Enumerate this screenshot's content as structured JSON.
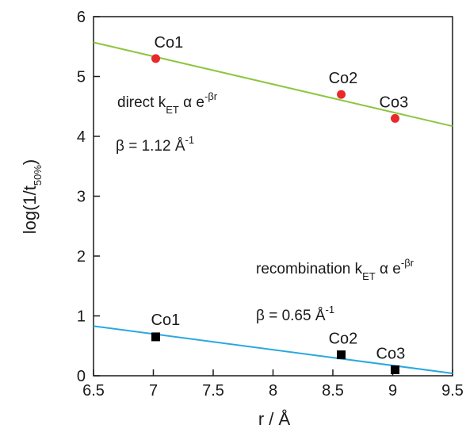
{
  "chart_data": {
    "type": "scatter",
    "xlabel": "r / Å",
    "ylabel": {
      "main": "log(1/t",
      "sub": "50%",
      "close": ")"
    },
    "xlim": [
      6.5,
      9.5
    ],
    "ylim": [
      0,
      6
    ],
    "xticks": [
      "6.5",
      "7",
      "7.5",
      "8",
      "8.5",
      "9",
      "9.5"
    ],
    "yticks": [
      "0",
      "1",
      "2",
      "3",
      "4",
      "5",
      "6"
    ],
    "xtick_values": [
      6.5,
      7,
      7.5,
      8,
      8.5,
      9,
      9.5
    ],
    "ytick_values": [
      0,
      1,
      2,
      3,
      4,
      5,
      6
    ],
    "grid": false,
    "series": [
      {
        "marker": "circle",
        "color": "#e8282b",
        "line_color": "#8dc63f",
        "points": [
          {
            "label": "Co1",
            "x": 7.02,
            "y": 5.3
          },
          {
            "label": "Co2",
            "x": 8.57,
            "y": 4.7
          },
          {
            "label": "Co3",
            "x": 9.02,
            "y": 4.3
          }
        ],
        "fit": {
          "x": [
            6.5,
            9.5
          ],
          "y": [
            5.57,
            4.17
          ]
        },
        "annotation": {
          "text": "direct k",
          "sub": "ET",
          "mid": " α e",
          "sup": "-βr",
          "beta_text": "β = 1.12 Å",
          "beta_sup": "-1"
        }
      },
      {
        "marker": "square",
        "color": "#000000",
        "line_color": "#29a8e0",
        "points": [
          {
            "label": "Co1",
            "x": 7.02,
            "y": 0.65
          },
          {
            "label": "Co2",
            "x": 8.57,
            "y": 0.35
          },
          {
            "label": "Co3",
            "x": 9.02,
            "y": 0.1
          }
        ],
        "fit": {
          "x": [
            6.5,
            9.5
          ],
          "y": [
            0.83,
            0.04
          ]
        },
        "annotation": {
          "text": "recombination k",
          "sub": "ET",
          "mid": " α e",
          "sup": "-βr",
          "beta_text": "β = 0.65 Å",
          "beta_sup": "-1"
        }
      }
    ]
  }
}
